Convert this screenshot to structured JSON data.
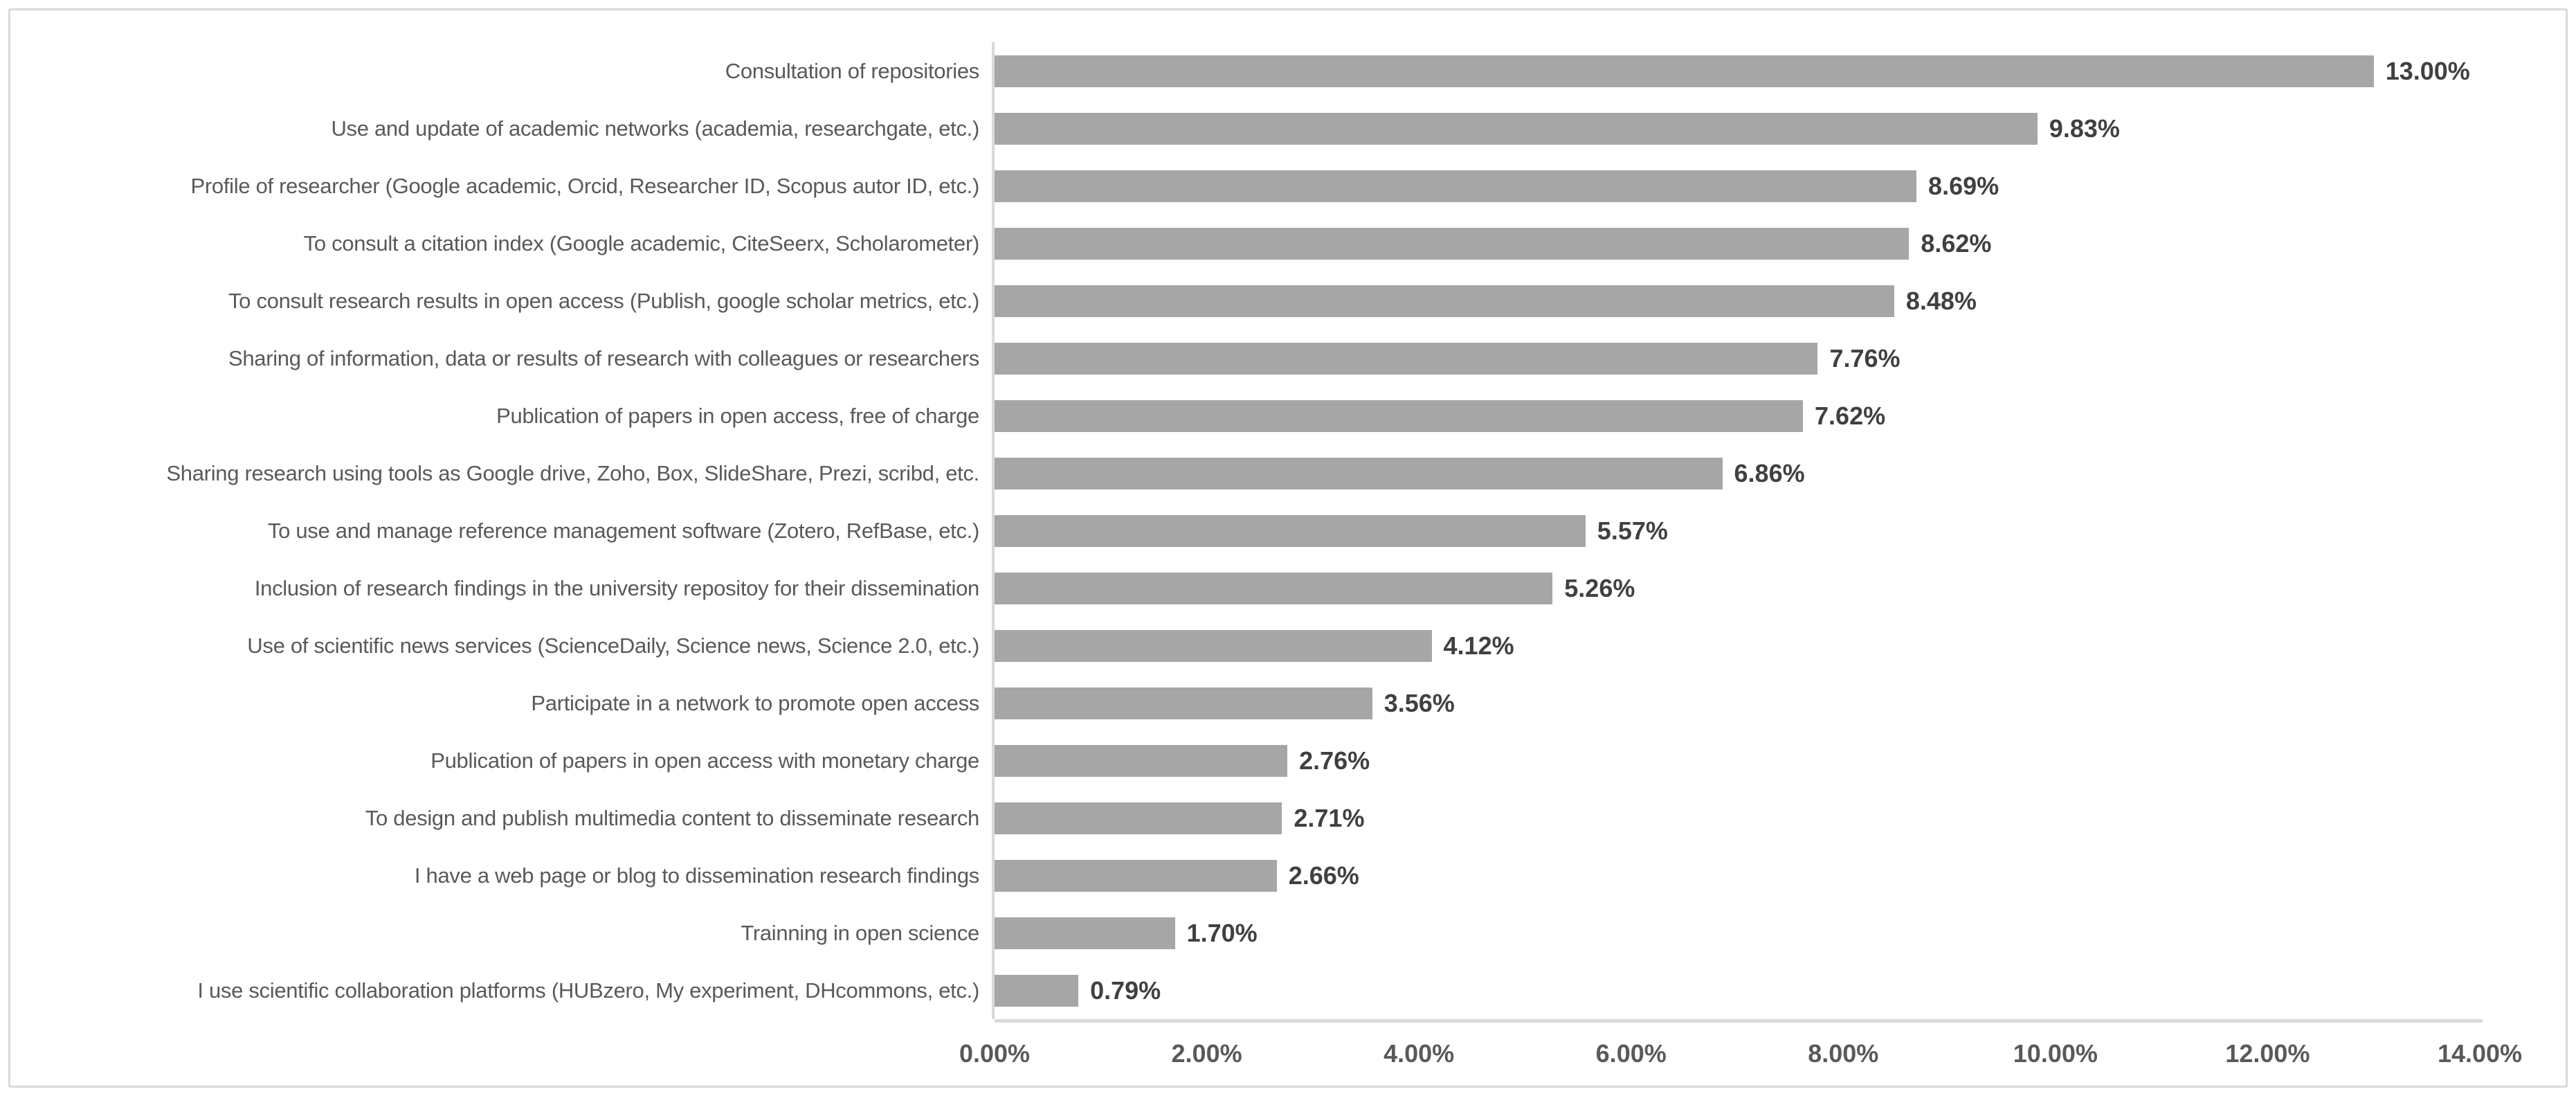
{
  "chart_data": {
    "type": "bar",
    "orientation": "horizontal",
    "title": "",
    "xlabel": "",
    "ylabel": "",
    "categories": [
      "Consultation of repositories",
      "Use and update of academic networks (academia, researchgate, etc.)",
      "Profile of researcher (Google academic, Orcid, Researcher ID, Scopus autor ID, etc.)",
      "To consult a citation index (Google academic, CiteSeerx, Scholarometer)",
      "To consult research results in open access (Publish, google scholar metrics, etc.)",
      "Sharing of information, data or results of research with colleagues or researchers",
      "Publication of papers in open access, free of charge",
      "Sharing research using tools as Google drive, Zoho, Box, SlideShare, Prezi, scribd, etc.",
      "To use and manage reference management software (Zotero, RefBase, etc.)",
      "Inclusion of research findings in the university repositoy for their dissemination",
      "Use of scientific news services (ScienceDaily, Science news, Science 2.0, etc.)",
      "Participate in a network to promote open access",
      "Publication of papers in open access with monetary charge",
      "To design and publish multimedia content to disseminate research",
      "I have a web page or blog to dissemination research findings",
      "Trainning in open science",
      "I use scientific collaboration platforms (HUBzero, My experiment, DHcommons, etc.)"
    ],
    "values": [
      13.0,
      9.83,
      8.69,
      8.62,
      8.48,
      7.76,
      7.62,
      6.86,
      5.57,
      5.26,
      4.12,
      3.56,
      2.76,
      2.71,
      2.66,
      1.7,
      0.79
    ],
    "value_labels": [
      "13.00%",
      "9.83%",
      "8.69%",
      "8.62%",
      "8.48%",
      "7.76%",
      "7.62%",
      "6.86%",
      "5.57%",
      "5.26%",
      "4.12%",
      "3.56%",
      "2.76%",
      "2.71%",
      "2.66%",
      "1.70%",
      "0.79%"
    ],
    "x_ticks": [
      "0.00%",
      "2.00%",
      "4.00%",
      "6.00%",
      "8.00%",
      "10.00%",
      "12.00%",
      "14.00%"
    ],
    "xlim": [
      0,
      14
    ],
    "grid": false,
    "legend": false,
    "colors": {
      "bar": "#A6A6A6",
      "axis_line": "#D9D9D9",
      "category_label": "#595959",
      "value_label": "#404040",
      "tick_label": "#595959",
      "frame_border": "#D9D9D9",
      "background": "#FFFFFF"
    }
  }
}
